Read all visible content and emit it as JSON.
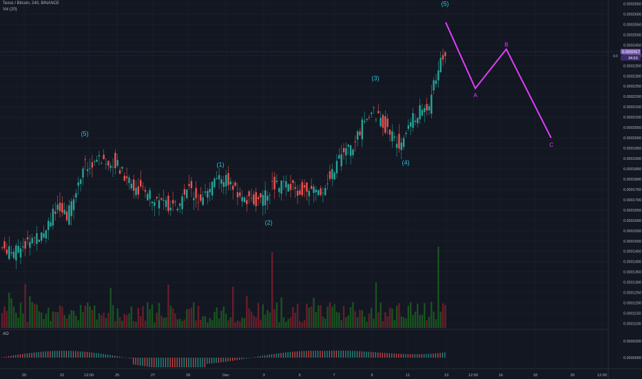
{
  "header": {
    "symbol_line": "Tezos / Bitcoin, 240, BINANCE",
    "volume_line": "Vol (20)",
    "ao_label": "AO"
  },
  "price_badge": {
    "value": "0.0002417",
    "countdown": "34:53",
    "value_small": "0.0",
    "color": "#7e57c2"
  },
  "colors": {
    "up": "#26a69a",
    "down": "#ef5350",
    "vol_up": "#1b5e20",
    "vol_down": "#7a1f2b",
    "wave": "#26c6da",
    "abc": "#e040fb",
    "grid": "#1e222d",
    "background": "#131722"
  },
  "chart_data": {
    "type": "candlestick",
    "price_axis": {
      "ylim": [
        0.0001085,
        0.0002655
      ],
      "ticks": [
        "0.0002650",
        "0.0002600",
        "0.0002550",
        "0.0002500",
        "0.0002450",
        "0.0002400",
        "0.0002350",
        "0.0002300",
        "0.0002250",
        "0.0002200",
        "0.0002150",
        "0.0002100",
        "0.0002050",
        "0.0002000",
        "0.0001950",
        "0.0001900",
        "0.0001850",
        "0.0001800",
        "0.0001750",
        "0.0001700",
        "0.0001650",
        "0.0001600",
        "0.0001550",
        "0.0001500",
        "0.0001450",
        "0.0001400",
        "0.0001350",
        "0.0001300",
        "0.0001250",
        "0.0001200",
        "0.0001150",
        "0.0001100"
      ]
    },
    "ao_axis": {
      "ticks": [
        "0.0000200",
        "0.0000000"
      ]
    },
    "x_ticks": [
      "20",
      "22",
      "12:00",
      "25",
      "27",
      "29",
      "Dec",
      "3",
      "5",
      "7",
      "9",
      "11",
      "13",
      "12:00",
      "16",
      "18",
      "20",
      "12:00"
    ],
    "elliott_labels": [
      {
        "text": "(5)",
        "x": 123,
        "y": 0.000201
      },
      {
        "text": "(1)",
        "x": 320,
        "y": 0.000186
      },
      {
        "text": "(2)",
        "x": 390,
        "y": 0.000158
      },
      {
        "text": "(3)",
        "x": 545,
        "y": 0.000228
      },
      {
        "text": "(4)",
        "x": 589,
        "y": 0.000187
      },
      {
        "text": "(5)",
        "x": 646,
        "y": 0.000264
      }
    ],
    "abc_projection": [
      {
        "label": "",
        "x": 647,
        "y": 0.000256
      },
      {
        "label": "A",
        "x": 690,
        "y": 0.000224
      },
      {
        "label": "B",
        "x": 735,
        "y": 0.000243
      },
      {
        "label": "C",
        "x": 800,
        "y": 0.0002
      }
    ]
  }
}
